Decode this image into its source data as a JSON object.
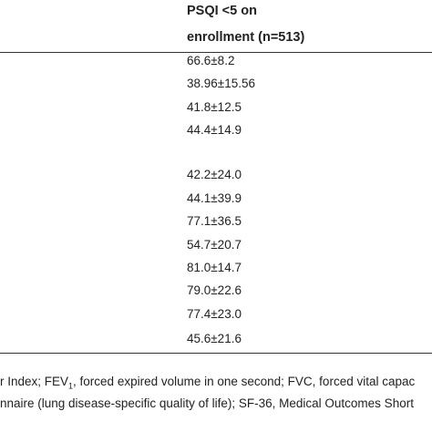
{
  "table": {
    "header": [
      "PSQI <5 on",
      "enrollment (n=513)"
    ],
    "rows": [
      "66.6±8.2",
      "38.96±15.56",
      "41.8±12.5",
      "44.4±14.9",
      null,
      "42.2±24.0",
      "44.1±39.9",
      "77.1±36.5",
      "54.7±20.7",
      "81.0±14.7",
      "79.0±22.6",
      "77.4±23.0",
      "45.6±21.6"
    ]
  },
  "footnote": {
    "line1": [
      "r Index; FEV",
      "1",
      ", forced expired volume in one second; FVC, forced vital capac"
    ],
    "line2": "nnaire (lung disease-specific quality of life); SF-36, Medical Outcomes Short"
  }
}
